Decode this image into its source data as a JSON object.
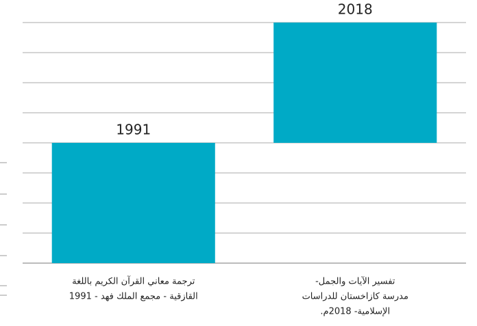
{
  "chart_data": {
    "type": "floating-bar",
    "categories": [
      [
        "ترجمة معاني القرآن الكريم باللغة",
        "القازقية - مجمع الملك فهد - 1991"
      ],
      [
        "تفسير الآيات والجمل-",
        "مدرسة كازاخستان للدراسات",
        "الإسلامية- 2018م."
      ]
    ],
    "values": [
      1991,
      2018
    ],
    "color": "#00aac6",
    "ylim": [
      1964,
      2018
    ],
    "yticks": [
      1964,
      1970.75,
      1977.5,
      1984.25,
      1991,
      1997.75,
      2004.5,
      2011.25,
      2018
    ],
    "grid": true
  }
}
